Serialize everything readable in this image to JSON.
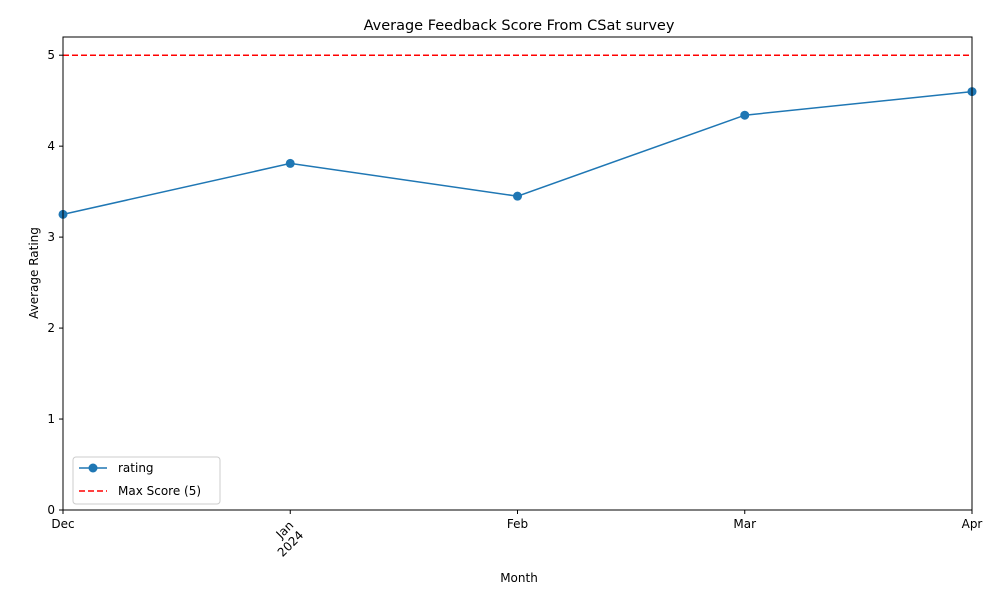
{
  "chart_data": {
    "type": "line",
    "title": "Average Feedback Score From CSat survey",
    "xlabel": "Month",
    "ylabel": "Average Rating",
    "x": [
      "2023-12",
      "2024-01",
      "2024-02",
      "2024-03",
      "2024-04"
    ],
    "x_tick_labels": [
      {
        "label": "Dec",
        "sub": ""
      },
      {
        "label": "Jan",
        "sub": "2024"
      },
      {
        "label": "Feb",
        "sub": ""
      },
      {
        "label": "Mar",
        "sub": ""
      },
      {
        "label": "Apr",
        "sub": ""
      }
    ],
    "series": [
      {
        "name": "rating",
        "values": [
          3.25,
          3.81,
          3.45,
          4.34,
          4.6
        ],
        "color": "#1f77b4",
        "style": "solid",
        "marker": "circle"
      }
    ],
    "reference_lines": [
      {
        "name": "Max Score (5)",
        "y": 5,
        "color": "#ff0000",
        "style": "dashed"
      }
    ],
    "ylim": [
      0,
      5.2
    ],
    "y_ticks": [
      0,
      1,
      2,
      3,
      4,
      5
    ],
    "grid": false,
    "legend_position": "lower-left"
  }
}
